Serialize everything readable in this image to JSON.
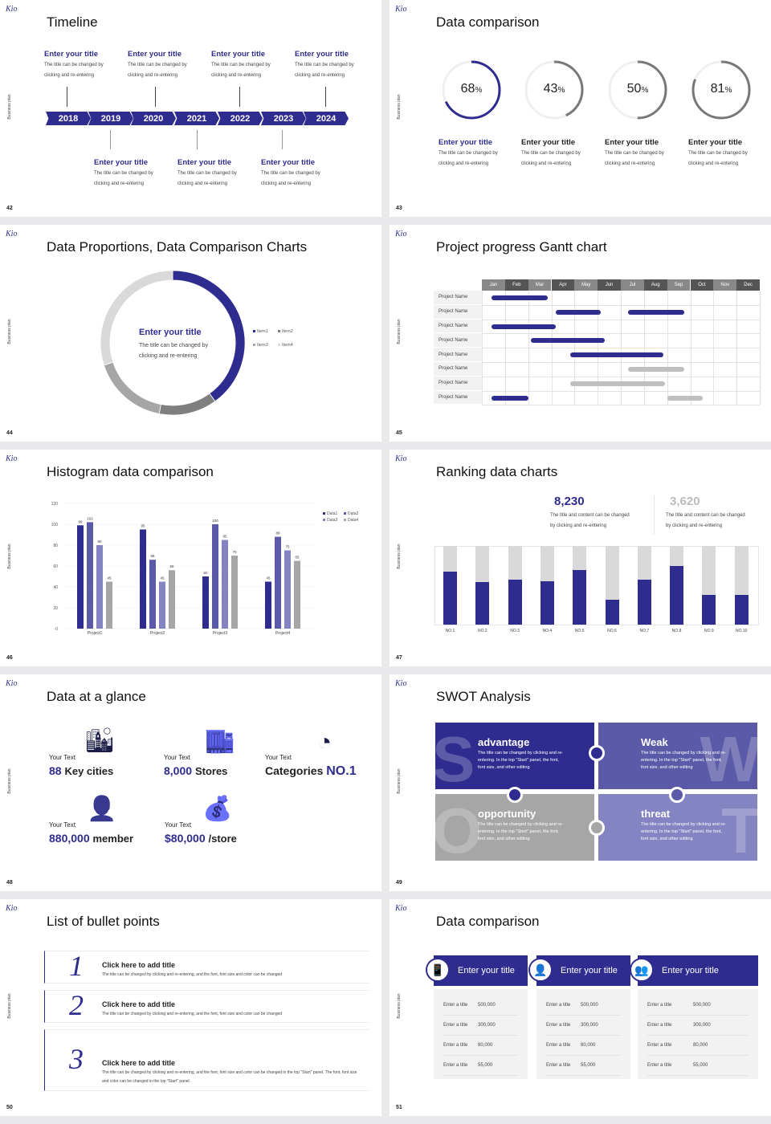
{
  "common": {
    "logo": "Kio",
    "side_label": "Business plan"
  },
  "colors": {
    "primary": "#2e2d8f",
    "data2": "#5b5aa8",
    "data3": "#8584c3",
    "gray": "#a6a6a6",
    "light": "#d9d9d9"
  },
  "slides": [
    {
      "page": "42",
      "title": "Timeline",
      "years": [
        "2018",
        "2019",
        "2020",
        "2021",
        "2022",
        "2023",
        "2024"
      ],
      "top_items": [
        {
          "title": "Enter your title",
          "desc1": "The title can be changed by",
          "desc2": "clicking and re-entering"
        },
        {
          "title": "Enter your title",
          "desc1": "The title can be changed by",
          "desc2": "clicking and re-entering"
        },
        {
          "title": "Enter your title",
          "desc1": "The title can be changed by",
          "desc2": "clicking and re-entering"
        },
        {
          "title": "Enter your title",
          "desc1": "The title can be changed by",
          "desc2": "clicking and re-entering"
        }
      ],
      "bottom_items": [
        {
          "title": "Enter your title",
          "desc1": "The title can be changed by",
          "desc2": "clicking and re-entering"
        },
        {
          "title": "Enter your title",
          "desc1": "The title can be changed by",
          "desc2": "clicking and re-entering"
        },
        {
          "title": "Enter your title",
          "desc1": "The title can be changed by",
          "desc2": "clicking and re-entering"
        }
      ]
    },
    {
      "page": "43",
      "title": "Data comparison",
      "rings": [
        {
          "value": 68,
          "label": "68",
          "unit": "%",
          "title": "Enter your title",
          "desc1": "The title can be changed by",
          "desc2": "clicking and re-entering",
          "color": "#2e2d8f"
        },
        {
          "value": 43,
          "label": "43",
          "unit": "%",
          "title": "Enter your title",
          "desc1": "The title can be changed by",
          "desc2": "clicking and re-entering",
          "color": "#777777"
        },
        {
          "value": 50,
          "label": "50",
          "unit": "%",
          "title": "Enter your title",
          "desc1": "The title can be changed by",
          "desc2": "clicking and re-entering",
          "color": "#777777"
        },
        {
          "value": 81,
          "label": "81",
          "unit": "%",
          "title": "Enter your title",
          "desc1": "The title can be changed by",
          "desc2": "clicking and re-entering",
          "color": "#777777"
        }
      ]
    },
    {
      "page": "44",
      "title": "Data Proportions, Data Comparison Charts",
      "center_title": "Enter your title",
      "center_desc1": "The title can be changed by",
      "center_desc2": "clicking and re-entering"
    },
    {
      "page": "45",
      "title": "Project progress Gantt chart"
    },
    {
      "page": "46",
      "title": "Histogram data comparison"
    },
    {
      "page": "47",
      "title": "Ranking data charts",
      "stats": [
        {
          "value": "8,230",
          "desc1": "The title and content can be changed",
          "desc2": "by clicking and re-entering"
        },
        {
          "value": "3,620",
          "desc1": "The title and content can be changed",
          "desc2": "by clicking and re-entering"
        }
      ]
    },
    {
      "page": "48",
      "title": "Data at a glance",
      "items": [
        {
          "small": "Your Text",
          "num": "88",
          "text": "Key cities",
          "icon": "city-buildings-icon"
        },
        {
          "small": "Your Text",
          "num": "8,000",
          "text": "Stores",
          "icon": "store-icon"
        },
        {
          "small": "Your Text",
          "text": "Categories",
          "num": "NO.1",
          "icon": "pie-3d-icon"
        },
        {
          "small": "Your Text",
          "num": "880,000",
          "text": "member",
          "icon": "member-add-icon"
        },
        {
          "small": "Your Text",
          "num": "$80,000",
          "text": "/store",
          "icon": "coins-icon"
        }
      ]
    },
    {
      "page": "49",
      "title": "SWOT Analysis",
      "quadrants": [
        {
          "letter": "S",
          "title": "advantage",
          "desc": "The title can be changed by clicking and re-entering. In the top \"Start\" panel, the font, font size, and other editing",
          "color": "#2e2d8f"
        },
        {
          "letter": "W",
          "title": "Weak",
          "desc": "The title can be changed by clicking and re-entering. In the top \"Start\" panel, the font, font size, and other editing",
          "color": "#5b5aa8"
        },
        {
          "letter": "O",
          "title": "opportunity",
          "desc": "The title can be changed by clicking and re-entering. In the top \"Start\" panel, the font, font size, and other editing",
          "color": "#a6a6a6"
        },
        {
          "letter": "T",
          "title": "threat",
          "desc": "The title can be changed by clicking and re-entering. In the top \"Start\" panel, the font, font size, and other editing",
          "color": "#8584c3"
        }
      ]
    },
    {
      "page": "50",
      "title": "List of bullet points",
      "bullets": [
        {
          "num": "1",
          "title": "Click here to add title",
          "desc": "The title can be changed by clicking and re-entering, and the font, font size and color can be changed"
        },
        {
          "num": "2",
          "title": "Click here to add title",
          "desc": "The title can be changed by clicking and re-entering, and the font, font size and color can be changed"
        },
        {
          "num": "3",
          "title": "Click here to add title",
          "desc": "The title can be changed by clicking and re-entering, and the font, font size and color can be changed in the top \"Start\" panel. The font, font size and color can be changed in the top \"Start\" panel."
        }
      ]
    },
    {
      "page": "51",
      "title": "Data comparison",
      "cards": [
        {
          "title": "Enter your title",
          "icon": "tablet-user-icon",
          "rows": [
            [
              "Enter a title",
              "500,000"
            ],
            [
              "Enter a title",
              "300,000"
            ],
            [
              "Enter a title",
              "80,000"
            ],
            [
              "Enter a title",
              "55,000"
            ]
          ]
        },
        {
          "title": "Enter your title",
          "icon": "user-add-icon",
          "rows": [
            [
              "Enter a title",
              "500,000"
            ],
            [
              "Enter a title",
              "300,000"
            ],
            [
              "Enter a title",
              "80,000"
            ],
            [
              "Enter a title",
              "55,000"
            ]
          ]
        },
        {
          "title": "Enter your title",
          "icon": "user-group-icon",
          "rows": [
            [
              "Enter a title",
              "500,000"
            ],
            [
              "Enter a title",
              "300,000"
            ],
            [
              "Enter a title",
              "80,000"
            ],
            [
              "Enter a title",
              "55,000"
            ]
          ]
        }
      ]
    }
  ],
  "chart_data": [
    {
      "type": "pie",
      "variant": "donut",
      "categories": [
        "Item1",
        "Item2",
        "Item3",
        "Item4"
      ],
      "values": [
        40,
        13,
        17,
        30
      ],
      "colors": [
        "#2e2d8f",
        "#7f7f7f",
        "#a6a6a6",
        "#d9d9d9"
      ],
      "legend": "right"
    },
    {
      "type": "gantt",
      "months": [
        "Jan",
        "Feb",
        "Mar",
        "Apr",
        "May",
        "Jun",
        "Jul",
        "Aug",
        "Sep",
        "Oct",
        "Nov",
        "Dec"
      ],
      "rows": [
        {
          "label": "Project Name",
          "bars": [
            {
              "start": 0.4,
              "end": 2.85,
              "status": "active"
            }
          ]
        },
        {
          "label": "Project Name",
          "bars": [
            {
              "start": 3.2,
              "end": 5.15,
              "status": "active"
            },
            {
              "start": 6.3,
              "end": 8.75,
              "status": "active"
            }
          ]
        },
        {
          "label": "Project Name",
          "bars": [
            {
              "start": 0.4,
              "end": 3.2,
              "status": "active"
            }
          ]
        },
        {
          "label": "Project Name",
          "bars": [
            {
              "start": 2.1,
              "end": 5.3,
              "status": "active"
            }
          ]
        },
        {
          "label": "Project Name",
          "bars": [
            {
              "start": 3.8,
              "end": 7.85,
              "status": "active"
            }
          ]
        },
        {
          "label": "Project Name",
          "bars": [
            {
              "start": 6.3,
              "end": 8.75,
              "status": "planned"
            }
          ]
        },
        {
          "label": "Project Name",
          "bars": [
            {
              "start": 3.8,
              "end": 7.9,
              "status": "planned"
            }
          ]
        },
        {
          "label": "Project Name",
          "bars": [
            {
              "start": 0.4,
              "end": 2.0,
              "status": "active"
            },
            {
              "start": 8.0,
              "end": 9.55,
              "status": "planned"
            }
          ]
        }
      ]
    },
    {
      "type": "bar",
      "categories": [
        "Project1",
        "Project2",
        "Project3",
        "Project4"
      ],
      "series": [
        {
          "name": "Data1",
          "values": [
            99,
            95,
            50,
            45
          ]
        },
        {
          "name": "Data2",
          "values": [
            102,
            66,
            100,
            88
          ]
        },
        {
          "name": "Data3",
          "values": [
            80,
            45,
            85,
            75
          ]
        },
        {
          "name": "Data4",
          "values": [
            45,
            56,
            70,
            65
          ]
        }
      ],
      "yticks": [
        0,
        20,
        40,
        60,
        80,
        100,
        120
      ],
      "ylim": [
        0,
        120
      ],
      "grid": true,
      "legend": "top-right",
      "data_labels": true
    },
    {
      "type": "bar",
      "variant": "stacked-percent",
      "categories": [
        "NO.1",
        "NO.2",
        "NO.3",
        "NO.4",
        "NO.5",
        "NO.6",
        "NO.7",
        "NO.8",
        "NO.9",
        "NO.10"
      ],
      "values": [
        0.67,
        0.54,
        0.57,
        0.55,
        0.69,
        0.32,
        0.57,
        0.74,
        0.38,
        0.38
      ]
    }
  ]
}
